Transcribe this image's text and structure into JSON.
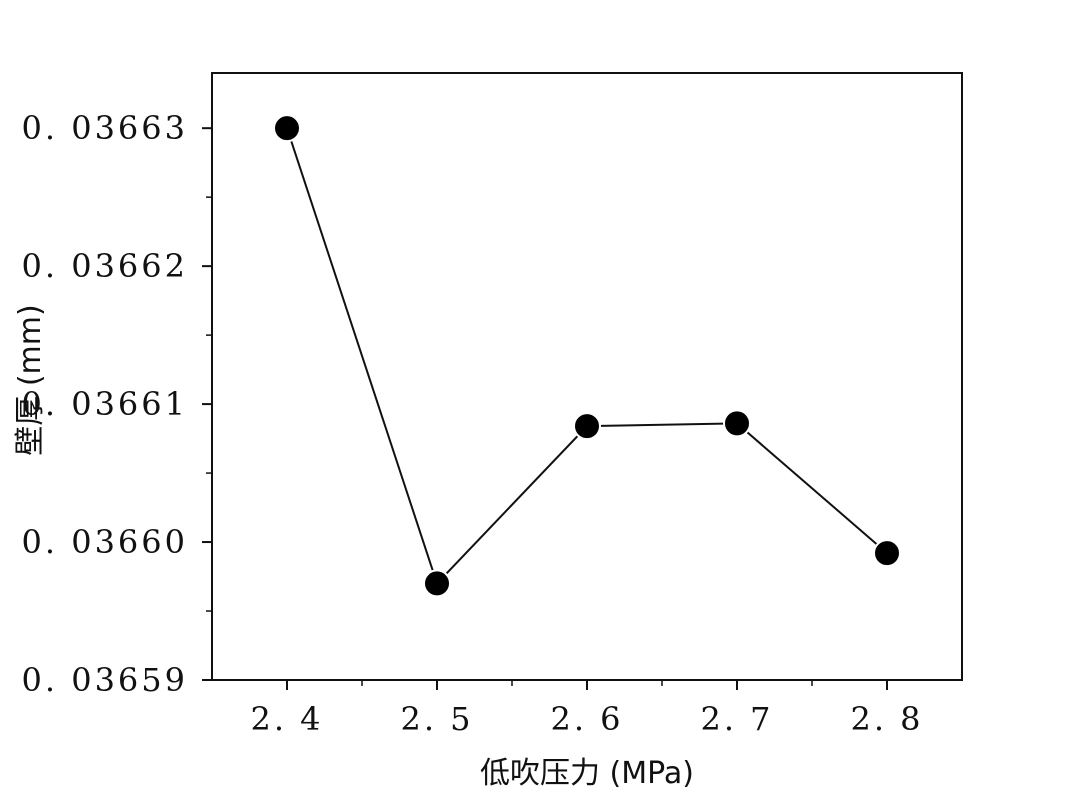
{
  "chart_data": {
    "type": "line",
    "xlabel": "低吹压力 (MPa)",
    "ylabel": "壁厚 (mm)",
    "x": [
      2.4,
      2.5,
      2.6,
      2.7,
      2.8
    ],
    "x_tick_labels": [
      "2. 4",
      "2. 5",
      "2. 6",
      "2. 7",
      "2. 8"
    ],
    "xlim": [
      2.35,
      2.85
    ],
    "ylim": [
      0.03659,
      0.036634
    ],
    "y_ticks": [
      0.03659,
      0.0366,
      0.03661,
      0.03662,
      0.03663
    ],
    "y_tick_labels": [
      "0. 03659",
      "0. 03660",
      "0. 03661",
      "0. 03662",
      "0. 03663"
    ],
    "series": [
      {
        "values": [
          0.03663,
          0.036597,
          0.0366084,
          0.0366086,
          0.0365992
        ]
      }
    ],
    "grid": false,
    "colors": {
      "line": "#111111",
      "marker": "#000000",
      "marker_edge": "#ffffff"
    }
  }
}
